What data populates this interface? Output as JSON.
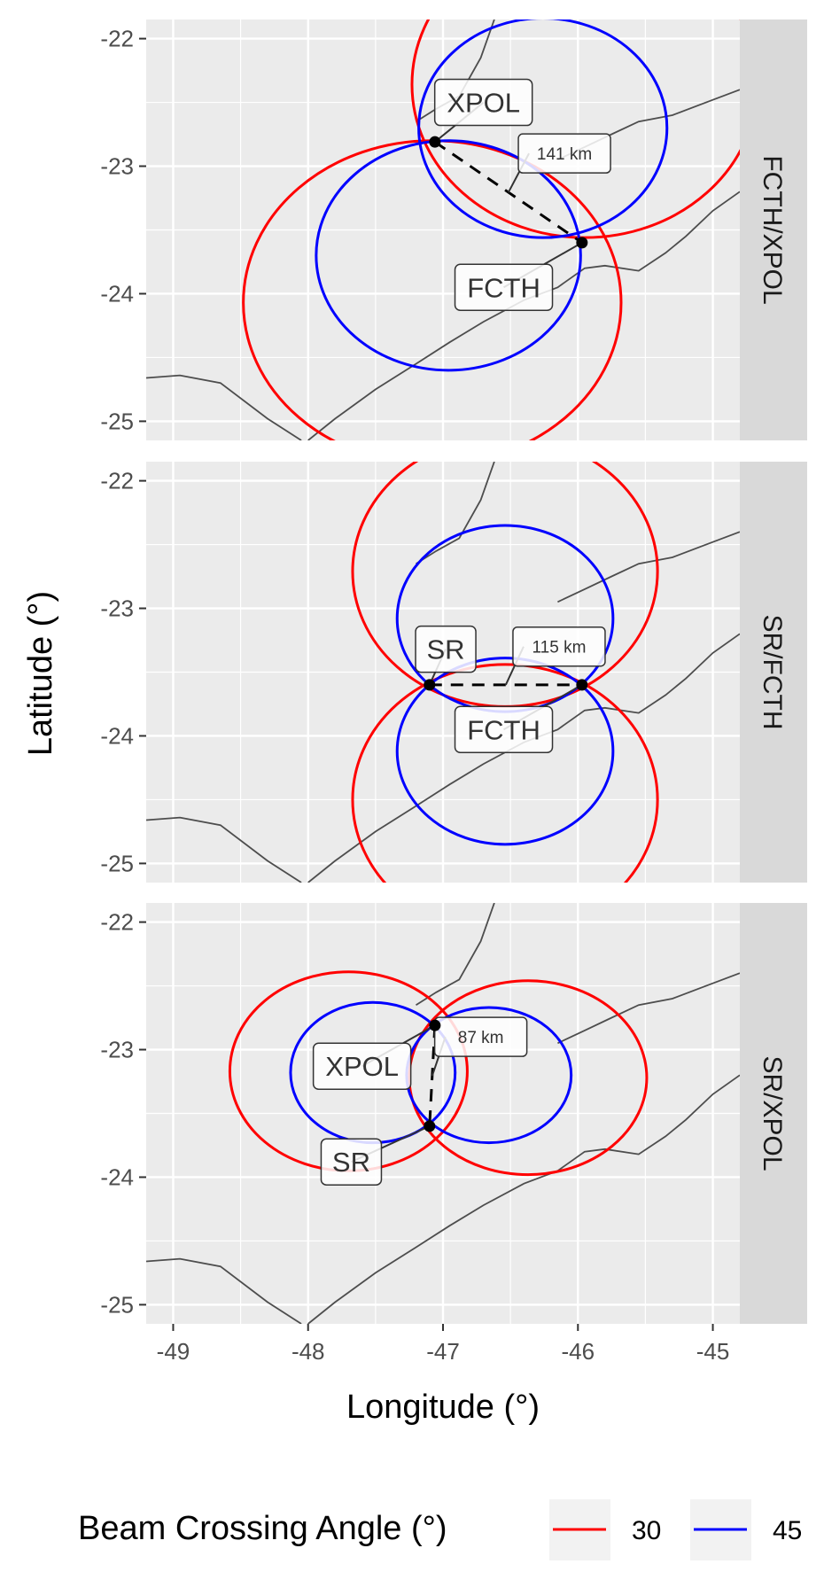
{
  "chart_data": {
    "type": "line",
    "xlabel": "Longitude (°)",
    "ylabel": "Latitude (°)",
    "xlim": [
      -49.2,
      -44.8
    ],
    "ylim": [
      -25.15,
      -21.85
    ],
    "x_ticks": [
      -49,
      -48,
      -47,
      -46,
      -45
    ],
    "x_tick_labels": [
      "-49",
      "-48",
      "-47",
      "-46",
      "-45"
    ],
    "y_ticks": [
      -22,
      -23,
      -24,
      -25
    ],
    "y_tick_labels": [
      "-22",
      "-23",
      "-24",
      "-25"
    ],
    "grid": true,
    "legend": {
      "title": "Beam Crossing Angle (°)",
      "position": "bottom",
      "entries": [
        {
          "label": "30",
          "color": "#ff0000"
        },
        {
          "label": "45",
          "color": "#0000ff"
        }
      ]
    },
    "panels": [
      {
        "strip": "FCTH/XPOL",
        "radars": [
          {
            "name": "XPOL",
            "lon": -47.06,
            "lat": -22.81,
            "label_lon": -46.7,
            "label_lat": -22.5
          },
          {
            "name": "FCTH",
            "lon": -45.97,
            "lat": -23.6,
            "label_lon": -46.55,
            "label_lat": -23.95
          }
        ],
        "distance_label": "141 km",
        "distance_label_pos": {
          "lon": -46.1,
          "lat": -22.9
        },
        "circles": [
          {
            "angle": 30,
            "center_lon": -45.95,
            "center_lat": -22.36,
            "r_lon": 1.28,
            "r_lat": 1.2
          },
          {
            "angle": 30,
            "center_lon": -47.08,
            "center_lat": -24.07,
            "r_lon": 1.4,
            "r_lat": 1.27
          },
          {
            "angle": 45,
            "center_lon": -46.26,
            "center_lat": -22.7,
            "r_lon": 0.92,
            "r_lat": 0.86
          },
          {
            "angle": 45,
            "center_lon": -46.96,
            "center_lat": -23.7,
            "r_lon": 0.98,
            "r_lat": 0.9
          }
        ]
      },
      {
        "strip": "SR/FCTH",
        "radars": [
          {
            "name": "SR",
            "lon": -47.1,
            "lat": -23.6,
            "label_lon": -46.98,
            "label_lat": -23.32
          },
          {
            "name": "FCTH",
            "lon": -45.97,
            "lat": -23.6,
            "label_lon": -46.55,
            "label_lat": -23.95
          }
        ],
        "distance_label": "115 km",
        "distance_label_pos": {
          "lon": -46.14,
          "lat": -23.3
        },
        "circles": [
          {
            "angle": 30,
            "center_lon": -46.54,
            "center_lat": -22.71,
            "r_lon": 1.13,
            "r_lat": 1.06
          },
          {
            "angle": 30,
            "center_lon": -46.54,
            "center_lat": -24.5,
            "r_lon": 1.13,
            "r_lat": 1.06
          },
          {
            "angle": 45,
            "center_lon": -46.54,
            "center_lat": -23.08,
            "r_lon": 0.8,
            "r_lat": 0.73
          },
          {
            "angle": 45,
            "center_lon": -46.54,
            "center_lat": -24.12,
            "r_lon": 0.8,
            "r_lat": 0.73
          }
        ]
      },
      {
        "strip": "SR/XPOL",
        "radars": [
          {
            "name": "XPOL",
            "lon": -47.06,
            "lat": -22.81,
            "label_lon": -47.6,
            "label_lat": -23.13
          },
          {
            "name": "SR",
            "lon": -47.1,
            "lat": -23.6,
            "label_lon": -47.68,
            "label_lat": -23.88
          }
        ],
        "distance_label": "87 km",
        "distance_label_pos": {
          "lon": -46.72,
          "lat": -22.9
        },
        "circles": [
          {
            "angle": 30,
            "center_lon": -47.7,
            "center_lat": -23.17,
            "r_lon": 0.88,
            "r_lat": 0.78
          },
          {
            "angle": 30,
            "center_lon": -46.37,
            "center_lat": -23.22,
            "r_lon": 0.88,
            "r_lat": 0.76
          },
          {
            "angle": 45,
            "center_lon": -47.52,
            "center_lat": -23.18,
            "r_lon": 0.61,
            "r_lat": 0.55
          },
          {
            "angle": 45,
            "center_lon": -46.66,
            "center_lat": -23.2,
            "r_lon": 0.61,
            "r_lat": 0.53
          }
        ]
      }
    ],
    "coastline": [
      [
        -49.2,
        -24.66
      ],
      [
        -48.95,
        -24.64
      ],
      [
        -48.65,
        -24.7
      ],
      [
        -48.3,
        -24.98
      ],
      [
        -48.05,
        -25.15
      ]
    ],
    "coastline_main": [
      [
        -48.0,
        -25.15
      ],
      [
        -47.8,
        -24.98
      ],
      [
        -47.5,
        -24.75
      ],
      [
        -47.2,
        -24.55
      ],
      [
        -46.95,
        -24.38
      ],
      [
        -46.7,
        -24.22
      ],
      [
        -46.4,
        -24.05
      ],
      [
        -46.15,
        -23.95
      ],
      [
        -45.95,
        -23.8
      ],
      [
        -45.8,
        -23.78
      ],
      [
        -45.55,
        -23.82
      ],
      [
        -45.35,
        -23.68
      ],
      [
        -45.2,
        -23.55
      ],
      [
        -45.0,
        -23.35
      ],
      [
        -44.8,
        -23.2
      ]
    ],
    "state_border": [
      [
        -47.2,
        -22.65
      ],
      [
        -47.05,
        -22.55
      ],
      [
        -46.88,
        -22.45
      ],
      [
        -46.72,
        -22.15
      ],
      [
        -46.62,
        -21.85
      ]
    ],
    "state_border_east": [
      [
        -44.8,
        -22.4
      ],
      [
        -45.0,
        -22.48
      ],
      [
        -45.3,
        -22.6
      ],
      [
        -45.55,
        -22.65
      ],
      [
        -45.75,
        -22.75
      ],
      [
        -45.95,
        -22.85
      ],
      [
        -46.15,
        -22.95
      ]
    ]
  }
}
